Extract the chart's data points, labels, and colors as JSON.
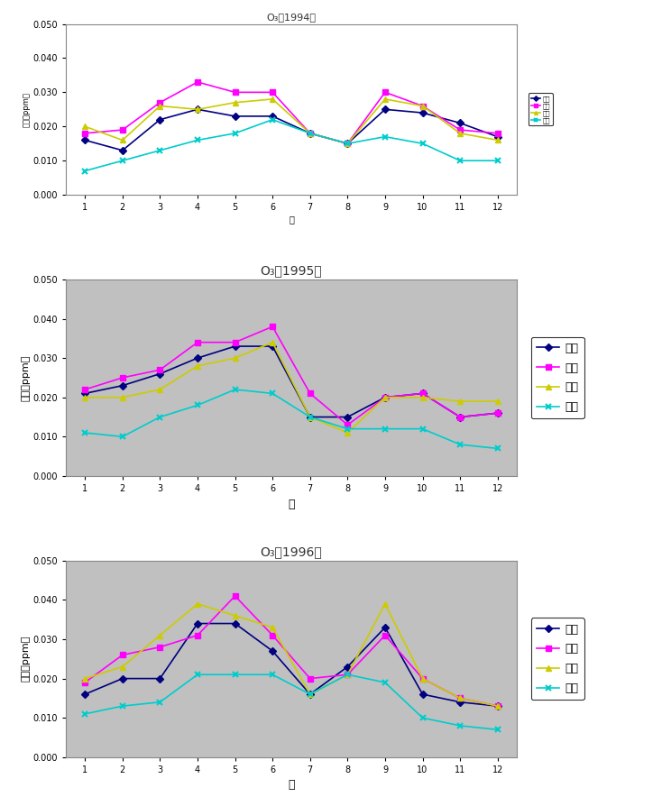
{
  "chart1": {
    "title": "O₃（1994）",
    "months": [
      1,
      2,
      3,
      4,
      5,
      6,
      7,
      8,
      9,
      10,
      11,
      12
    ],
    "series": {
      "여천": [
        0.016,
        0.013,
        0.022,
        0.025,
        0.023,
        0.023,
        0.018,
        0.015,
        0.025,
        0.024,
        0.021,
        0.017
      ],
      "광양": [
        0.018,
        0.019,
        0.027,
        0.033,
        0.03,
        0.03,
        0.018,
        0.015,
        0.03,
        0.026,
        0.019,
        0.018
      ],
      "여수": [
        0.02,
        0.016,
        0.026,
        0.025,
        0.027,
        0.028,
        0.018,
        0.015,
        0.028,
        0.026,
        0.018,
        0.016
      ],
      "서울": [
        0.007,
        0.01,
        0.013,
        0.016,
        0.018,
        0.022,
        0.018,
        0.015,
        0.017,
        0.015,
        0.01,
        0.01
      ]
    },
    "colors": {
      "여천": "#000080",
      "광양": "#FF00FF",
      "여수": "#CCCC00",
      "서울": "#00CCCC"
    },
    "ylim": [
      0.0,
      0.05
    ],
    "yticks": [
      0.0,
      0.01,
      0.02,
      0.03,
      0.04,
      0.05
    ],
    "ylabel": "농도（ppm）",
    "xlabel": "월",
    "bg_color": "white"
  },
  "chart2": {
    "title": "O₃（1995）",
    "months": [
      1,
      2,
      3,
      4,
      5,
      6,
      7,
      8,
      9,
      10,
      11,
      12
    ],
    "series": {
      "여천": [
        0.021,
        0.023,
        0.026,
        0.03,
        0.033,
        0.033,
        0.015,
        0.015,
        0.02,
        0.021,
        0.015,
        0.016
      ],
      "광양": [
        0.022,
        0.025,
        0.027,
        0.034,
        0.034,
        0.038,
        0.021,
        0.013,
        0.02,
        0.021,
        0.015,
        0.016
      ],
      "여수": [
        0.02,
        0.02,
        0.022,
        0.028,
        0.03,
        0.034,
        0.015,
        0.011,
        0.02,
        0.02,
        0.019,
        0.019
      ],
      "서울": [
        0.011,
        0.01,
        0.015,
        0.018,
        0.022,
        0.021,
        0.015,
        0.012,
        0.012,
        0.012,
        0.008,
        0.007
      ]
    },
    "colors": {
      "여천": "#000080",
      "광양": "#FF00FF",
      "여수": "#CCCC00",
      "서울": "#00CCCC"
    },
    "ylim": [
      0.0,
      0.05
    ],
    "yticks": [
      0.0,
      0.01,
      0.02,
      0.03,
      0.04,
      0.05
    ],
    "ylabel": "농도（ppm）",
    "xlabel": "월",
    "bg_color": "#C0C0C0"
  },
  "chart3": {
    "title": "O₃（1996）",
    "months": [
      1,
      2,
      3,
      4,
      5,
      6,
      7,
      8,
      9,
      10,
      11,
      12
    ],
    "series": {
      "여천": [
        0.016,
        0.02,
        0.02,
        0.034,
        0.034,
        0.027,
        0.016,
        0.023,
        0.033,
        0.016,
        0.014,
        0.013
      ],
      "광양": [
        0.019,
        0.026,
        0.028,
        0.031,
        0.041,
        0.031,
        0.02,
        0.021,
        0.031,
        0.02,
        0.015,
        0.013
      ],
      "여수": [
        0.02,
        0.023,
        0.031,
        0.039,
        0.036,
        0.033,
        0.016,
        0.021,
        0.039,
        0.02,
        0.015,
        0.013
      ],
      "서울": [
        0.011,
        0.013,
        0.014,
        0.021,
        0.021,
        0.021,
        0.016,
        0.021,
        0.019,
        0.01,
        0.008,
        0.007
      ]
    },
    "colors": {
      "여천": "#000080",
      "광양": "#FF00FF",
      "여수": "#CCCC00",
      "서울": "#00CCCC"
    },
    "ylim": [
      0.0,
      0.05
    ],
    "yticks": [
      0.0,
      0.01,
      0.02,
      0.03,
      0.04,
      0.05
    ],
    "ylabel": "농도（ppm）",
    "xlabel": "월",
    "bg_color": "#C0C0C0"
  },
  "markers": {
    "여천": "D",
    "광양": "s",
    "여수": "^",
    "서울": "x"
  },
  "series_order": [
    "여천",
    "광양",
    "여수",
    "서울"
  ]
}
